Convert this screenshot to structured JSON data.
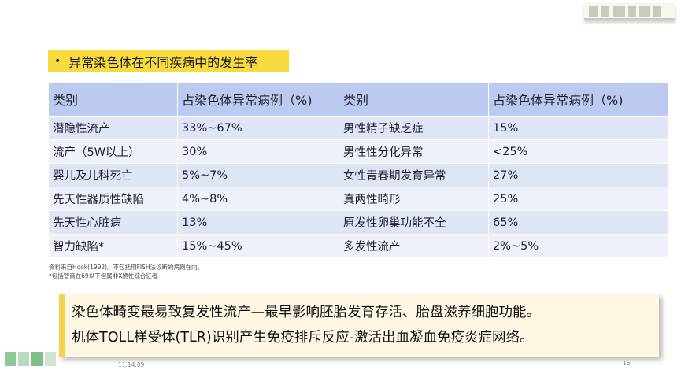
{
  "heading": {
    "bullet": "•",
    "text": "异常染色体在不同疾病中的发生率"
  },
  "table": {
    "headers": [
      "类别",
      "占染色体异常病例（%)",
      "类别",
      "占染色体异常病例（%)"
    ],
    "rows": [
      [
        "潜隐性流产",
        "33%~67%",
        "男性精子缺乏症",
        "15%"
      ],
      [
        "流产（5W以上）",
        "30%",
        "男性性分化异常",
        "<25%"
      ],
      [
        "婴儿及儿科死亡",
        "5%~7%",
        "女性青春期发育异常",
        "27%"
      ],
      [
        "先天性器质性缺陷",
        "4%~8%",
        "真两性畸形",
        "25%"
      ],
      [
        "先天性心脏病",
        "13%",
        "原发性卵巢功能不全",
        "65%"
      ],
      [
        "智力缺陷*",
        "15%~45%",
        "多发性流产",
        "2%~5%"
      ]
    ]
  },
  "notes": [
    "资料来自Hook(1992)。不包括用FISH法诊断的病例在内。",
    "*包括智商在69以下但属非X脆性综合征者"
  ],
  "callout": {
    "line1": "染色体畸变最易致复发性流产—最早影响胚胎发育存活、胎盘滋养细胞功能。",
    "line2": "机体TOLL样受体(TLR)识别产生免疫排斥反应-激活出血凝血免疫炎症网络。"
  },
  "footer": {
    "date": "11.14.09",
    "page": "16"
  },
  "colors": {
    "heading_bg": "#f6da3e",
    "table_header_bg": "#bccaf0",
    "row_odd_bg": "#dfe5f5",
    "row_even_bg": "#eef1fa",
    "callout_bg": "#fdf7e4",
    "callout_accent": "#f2d34d"
  }
}
